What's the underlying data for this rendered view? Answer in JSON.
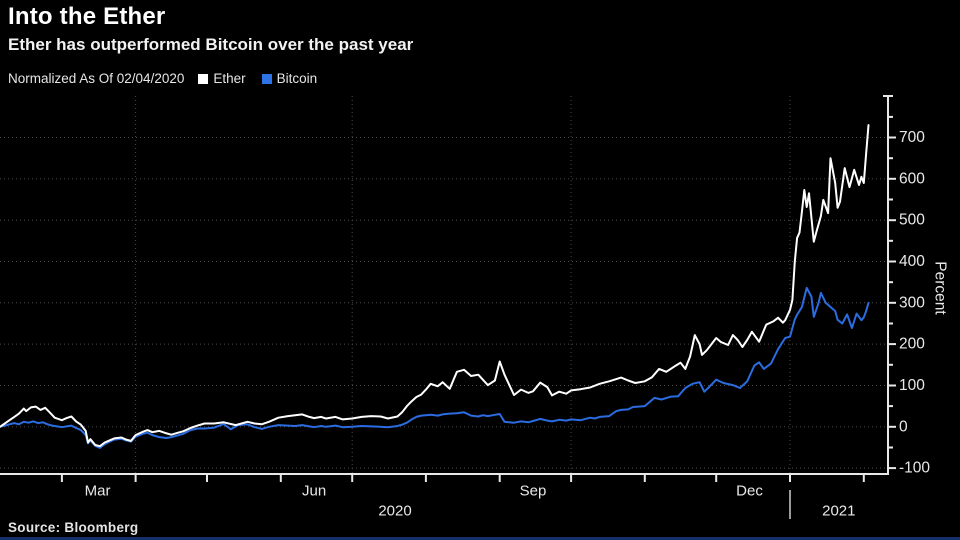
{
  "header": {
    "title": "Into the Ether",
    "subtitle": "Ether has outperformed Bitcoin over the past year"
  },
  "legend": {
    "note": "Normalized As Of 02/04/2020",
    "items": [
      {
        "label": "Ether",
        "color": "#ffffff"
      },
      {
        "label": "Bitcoin",
        "color": "#2e74e6"
      }
    ]
  },
  "source": "Source: Bloomberg",
  "colors": {
    "background": "#000000",
    "axis": "#e8e8e8",
    "grid": "#4a4a4a",
    "tick_label": "#e8e8e8",
    "ether_line": "#ffffff",
    "bitcoin_line": "#2b6ce0",
    "bottom_strip": "#16306b"
  },
  "chart_data": {
    "type": "line",
    "title": "Into the Ether",
    "xlabel": "",
    "ylabel": "Percent",
    "x_unit": "days since 2020-02-04 (normalization date)",
    "x_range_days": [
      0,
      373
    ],
    "ylim": [
      -115,
      800
    ],
    "y_ticks": [
      -100,
      0,
      100,
      200,
      300,
      400,
      500,
      600,
      700
    ],
    "y_minor_ticks": [
      -50,
      50,
      150,
      250,
      350,
      450,
      550,
      650,
      750
    ],
    "grid": "dotted horizontal at each 100, vertical at quarter starts",
    "vertical_grid_days": [
      57,
      148,
      240,
      332
    ],
    "month_tick_days": [
      26,
      57,
      87,
      118,
      148,
      179,
      210,
      240,
      271,
      301,
      332,
      363
    ],
    "month_labels": [
      {
        "label": "Mar",
        "day": 41
      },
      {
        "label": "Jun",
        "day": 132
      },
      {
        "label": "Sep",
        "day": 224
      },
      {
        "label": "Dec",
        "day": 315
      }
    ],
    "year_labels": [
      {
        "label": "2020",
        "day": 166
      },
      {
        "label": "2021",
        "day": 352.5
      }
    ],
    "year_separator_day": 332,
    "legend_position": "top-left above plot",
    "series": [
      {
        "name": "Ether",
        "color": "#ffffff",
        "points": [
          [
            0,
            0
          ],
          [
            2,
            8
          ],
          [
            4,
            16
          ],
          [
            6,
            24
          ],
          [
            8,
            32
          ],
          [
            10,
            44
          ],
          [
            11,
            38
          ],
          [
            13,
            47
          ],
          [
            15,
            49
          ],
          [
            17,
            41
          ],
          [
            19,
            46
          ],
          [
            21,
            34
          ],
          [
            23,
            22
          ],
          [
            26,
            16
          ],
          [
            28,
            21
          ],
          [
            30,
            25
          ],
          [
            32,
            13
          ],
          [
            34,
            5
          ],
          [
            36,
            -10
          ],
          [
            37,
            -38
          ],
          [
            38,
            -30
          ],
          [
            40,
            -44
          ],
          [
            42,
            -47
          ],
          [
            44,
            -38
          ],
          [
            46,
            -33
          ],
          [
            48,
            -28
          ],
          [
            51,
            -26
          ],
          [
            53,
            -31
          ],
          [
            55,
            -34
          ],
          [
            57,
            -20
          ],
          [
            60,
            -12
          ],
          [
            62,
            -8
          ],
          [
            64,
            -13
          ],
          [
            67,
            -10
          ],
          [
            70,
            -16
          ],
          [
            72,
            -19
          ],
          [
            75,
            -14
          ],
          [
            77,
            -11
          ],
          [
            80,
            -3
          ],
          [
            83,
            3
          ],
          [
            86,
            8
          ],
          [
            90,
            8
          ],
          [
            94,
            11
          ],
          [
            99,
            4
          ],
          [
            104,
            12
          ],
          [
            107,
            8
          ],
          [
            110,
            6
          ],
          [
            113,
            12
          ],
          [
            117,
            22
          ],
          [
            121,
            26
          ],
          [
            124,
            28
          ],
          [
            127,
            30
          ],
          [
            130,
            24
          ],
          [
            132,
            21
          ],
          [
            135,
            24
          ],
          [
            137,
            20
          ],
          [
            141,
            24
          ],
          [
            144,
            18
          ],
          [
            148,
            20
          ],
          [
            152,
            24
          ],
          [
            156,
            26
          ],
          [
            160,
            25
          ],
          [
            163,
            20
          ],
          [
            167,
            25
          ],
          [
            169,
            35
          ],
          [
            171,
            50
          ],
          [
            173,
            62
          ],
          [
            175,
            72
          ],
          [
            177,
            78
          ],
          [
            179,
            90
          ],
          [
            181,
            104
          ],
          [
            184,
            98
          ],
          [
            186,
            108
          ],
          [
            189,
            92
          ],
          [
            192,
            133
          ],
          [
            195,
            138
          ],
          [
            198,
            123
          ],
          [
            201,
            126
          ],
          [
            205,
            101
          ],
          [
            208,
            112
          ],
          [
            210,
            158
          ],
          [
            212,
            126
          ],
          [
            216,
            77
          ],
          [
            219,
            90
          ],
          [
            222,
            82
          ],
          [
            224,
            86
          ],
          [
            227,
            107
          ],
          [
            230,
            96
          ],
          [
            232,
            76
          ],
          [
            235,
            85
          ],
          [
            238,
            80
          ],
          [
            240,
            88
          ],
          [
            244,
            91
          ],
          [
            248,
            95
          ],
          [
            252,
            104
          ],
          [
            256,
            110
          ],
          [
            261,
            119
          ],
          [
            264,
            112
          ],
          [
            267,
            106
          ],
          [
            271,
            110
          ],
          [
            274,
            120
          ],
          [
            277,
            140
          ],
          [
            280,
            133
          ],
          [
            284,
            148
          ],
          [
            286,
            155
          ],
          [
            288,
            140
          ],
          [
            290,
            170
          ],
          [
            292,
            222
          ],
          [
            294,
            200
          ],
          [
            295,
            174
          ],
          [
            297,
            185
          ],
          [
            299,
            200
          ],
          [
            301,
            215
          ],
          [
            303,
            205
          ],
          [
            306,
            198
          ],
          [
            308,
            222
          ],
          [
            310,
            210
          ],
          [
            312,
            193
          ],
          [
            314,
            210
          ],
          [
            316,
            230
          ],
          [
            319,
            206
          ],
          [
            322,
            247
          ],
          [
            325,
            255
          ],
          [
            327,
            264
          ],
          [
            329,
            252
          ],
          [
            330,
            258
          ],
          [
            332,
            283
          ],
          [
            333,
            307
          ],
          [
            334,
            400
          ],
          [
            335,
            457
          ],
          [
            336,
            470
          ],
          [
            337,
            520
          ],
          [
            338,
            573
          ],
          [
            339,
            532
          ],
          [
            340,
            565
          ],
          [
            342,
            448
          ],
          [
            343,
            470
          ],
          [
            345,
            510
          ],
          [
            346,
            549
          ],
          [
            348,
            517
          ],
          [
            349,
            650
          ],
          [
            351,
            590
          ],
          [
            352,
            530
          ],
          [
            353,
            545
          ],
          [
            355,
            626
          ],
          [
            357,
            580
          ],
          [
            359,
            622
          ],
          [
            361,
            585
          ],
          [
            362,
            605
          ],
          [
            363,
            590
          ],
          [
            364,
            660
          ],
          [
            365,
            730
          ]
        ]
      },
      {
        "name": "Bitcoin",
        "color": "#2b6ce0",
        "points": [
          [
            0,
            0
          ],
          [
            2,
            3
          ],
          [
            4,
            6
          ],
          [
            6,
            9
          ],
          [
            8,
            6
          ],
          [
            10,
            12
          ],
          [
            12,
            10
          ],
          [
            14,
            13
          ],
          [
            16,
            9
          ],
          [
            18,
            11
          ],
          [
            20,
            6
          ],
          [
            22,
            3
          ],
          [
            24,
            1
          ],
          [
            26,
            -1
          ],
          [
            28,
            1
          ],
          [
            30,
            3
          ],
          [
            32,
            -3
          ],
          [
            34,
            -8
          ],
          [
            36,
            -20
          ],
          [
            37,
            -40
          ],
          [
            38,
            -33
          ],
          [
            40,
            -46
          ],
          [
            42,
            -51
          ],
          [
            44,
            -42
          ],
          [
            46,
            -36
          ],
          [
            48,
            -31
          ],
          [
            51,
            -29
          ],
          [
            53,
            -33
          ],
          [
            55,
            -36
          ],
          [
            57,
            -24
          ],
          [
            60,
            -17
          ],
          [
            62,
            -14
          ],
          [
            64,
            -20
          ],
          [
            67,
            -25
          ],
          [
            70,
            -27
          ],
          [
            72,
            -25
          ],
          [
            75,
            -20
          ],
          [
            77,
            -17
          ],
          [
            80,
            -8
          ],
          [
            83,
            -4
          ],
          [
            86,
            -4
          ],
          [
            90,
            -2
          ],
          [
            94,
            7
          ],
          [
            97,
            -6
          ],
          [
            100,
            4
          ],
          [
            104,
            6
          ],
          [
            107,
            -1
          ],
          [
            110,
            -5
          ],
          [
            113,
            0
          ],
          [
            117,
            4
          ],
          [
            121,
            3
          ],
          [
            124,
            2
          ],
          [
            127,
            4
          ],
          [
            130,
            1
          ],
          [
            132,
            -1
          ],
          [
            135,
            2
          ],
          [
            137,
            0
          ],
          [
            141,
            3
          ],
          [
            144,
            -1
          ],
          [
            148,
            0
          ],
          [
            152,
            2
          ],
          [
            156,
            1
          ],
          [
            160,
            0
          ],
          [
            163,
            -1
          ],
          [
            167,
            2
          ],
          [
            169,
            5
          ],
          [
            171,
            10
          ],
          [
            173,
            18
          ],
          [
            175,
            24
          ],
          [
            177,
            27
          ],
          [
            179,
            28
          ],
          [
            181,
            29
          ],
          [
            184,
            27
          ],
          [
            186,
            30
          ],
          [
            189,
            32
          ],
          [
            192,
            33
          ],
          [
            195,
            35
          ],
          [
            198,
            27
          ],
          [
            201,
            25
          ],
          [
            203,
            28
          ],
          [
            205,
            26
          ],
          [
            208,
            29
          ],
          [
            210,
            31
          ],
          [
            212,
            12
          ],
          [
            216,
            10
          ],
          [
            219,
            13
          ],
          [
            222,
            11
          ],
          [
            224,
            14
          ],
          [
            227,
            19
          ],
          [
            230,
            15
          ],
          [
            232,
            13
          ],
          [
            235,
            17
          ],
          [
            238,
            15
          ],
          [
            240,
            18
          ],
          [
            244,
            16
          ],
          [
            248,
            22
          ],
          [
            250,
            20
          ],
          [
            252,
            24
          ],
          [
            256,
            26
          ],
          [
            259,
            38
          ],
          [
            261,
            41
          ],
          [
            264,
            42
          ],
          [
            266,
            48
          ],
          [
            271,
            50
          ],
          [
            275,
            70
          ],
          [
            278,
            66
          ],
          [
            282,
            73
          ],
          [
            285,
            74
          ],
          [
            288,
            94
          ],
          [
            291,
            104
          ],
          [
            294,
            108
          ],
          [
            296,
            85
          ],
          [
            298,
            96
          ],
          [
            301,
            114
          ],
          [
            304,
            106
          ],
          [
            308,
            101
          ],
          [
            311,
            94
          ],
          [
            314,
            110
          ],
          [
            317,
            148
          ],
          [
            319,
            156
          ],
          [
            321,
            140
          ],
          [
            324,
            153
          ],
          [
            327,
            188
          ],
          [
            330,
            215
          ],
          [
            332,
            218
          ],
          [
            334,
            260
          ],
          [
            335,
            271
          ],
          [
            337,
            290
          ],
          [
            339,
            336
          ],
          [
            341,
            315
          ],
          [
            342,
            266
          ],
          [
            344,
            300
          ],
          [
            345,
            324
          ],
          [
            347,
            300
          ],
          [
            349,
            290
          ],
          [
            351,
            280
          ],
          [
            352,
            259
          ],
          [
            354,
            250
          ],
          [
            356,
            272
          ],
          [
            358,
            239
          ],
          [
            360,
            274
          ],
          [
            362,
            258
          ],
          [
            363,
            265
          ],
          [
            364,
            280
          ],
          [
            365,
            300
          ]
        ]
      }
    ]
  }
}
